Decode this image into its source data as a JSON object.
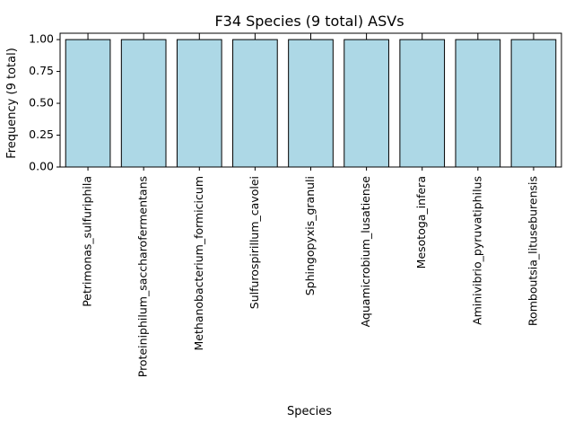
{
  "chart_data": {
    "type": "bar",
    "title": "F34 Species (9 total) ASVs",
    "xlabel": "Species",
    "ylabel": "Frequency (9 total)",
    "categories": [
      "Petrimonas_sulfuriphila",
      "Proteiniphilum_saccharofermentans",
      "Methanobacterium_formicicum",
      "Sulfurospirillum_cavolei",
      "Sphingopyxis_granuli",
      "Aquamicrobium_lusatiense",
      "Mesotoga_infera",
      "Aminivibrio_pyruvatiphilus",
      "Romboutsia_lituseburensis"
    ],
    "values": [
      1,
      1,
      1,
      1,
      1,
      1,
      1,
      1,
      1
    ],
    "error_bars": [
      0.05,
      0.05,
      0.05,
      0.05,
      0.05,
      0.05,
      0.05,
      0.05,
      0.05
    ],
    "ylim": [
      0,
      1.05
    ],
    "yticks": [
      "0.00",
      "0.25",
      "0.50",
      "0.75",
      "1.00"
    ],
    "grid": false,
    "legend": "none",
    "colors": {
      "bar_fill": "#add8e6",
      "bar_edge": "#000000"
    }
  }
}
